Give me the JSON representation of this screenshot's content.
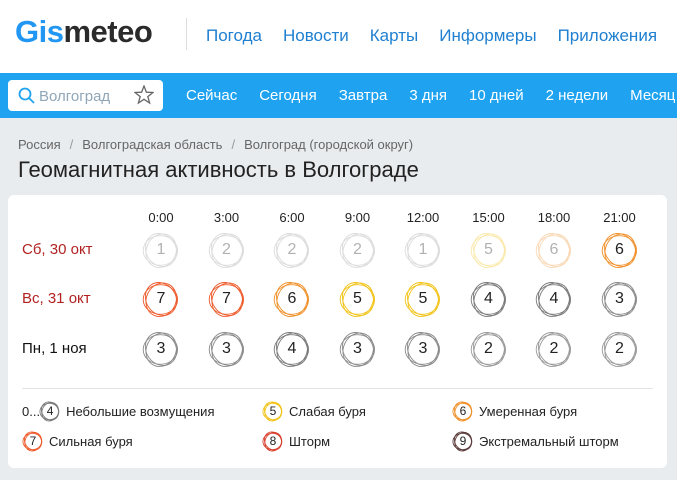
{
  "header": {
    "logo_a": "Gis",
    "logo_b": "meteo",
    "nav": [
      "Погода",
      "Новости",
      "Карты",
      "Информеры",
      "Приложения"
    ]
  },
  "search": {
    "placeholder": "Волгоград"
  },
  "tabs": [
    "Сейчас",
    "Сегодня",
    "Завтра",
    "3 дня",
    "10 дней",
    "2 недели",
    "Месяц"
  ],
  "breadcrumbs": [
    "Россия",
    "Волгоградская область",
    "Волгоград (городской округ)"
  ],
  "title": "Геомагнитная активность в Волгограде",
  "table": {
    "times": [
      "0:00",
      "3:00",
      "6:00",
      "9:00",
      "12:00",
      "15:00",
      "18:00",
      "21:00"
    ],
    "rows": [
      {
        "label": "Сб, 30 окт",
        "values": [
          1,
          2,
          2,
          2,
          1,
          5,
          6,
          6
        ]
      },
      {
        "label": "Вс, 31 окт",
        "values": [
          7,
          7,
          6,
          5,
          5,
          4,
          4,
          3
        ]
      },
      {
        "label": "Пн, 1 ноя",
        "values": [
          3,
          3,
          4,
          3,
          3,
          2,
          2,
          2
        ]
      }
    ]
  },
  "legend": [
    {
      "prefix": "0...",
      "level": 4,
      "label": "Небольшие возмущения"
    },
    {
      "level": 5,
      "label": "Слабая буря"
    },
    {
      "level": 6,
      "label": "Умеренная буря"
    },
    {
      "level": 7,
      "label": "Сильная буря"
    },
    {
      "level": 8,
      "label": "Шторм"
    },
    {
      "level": 9,
      "label": "Экстремальный шторм"
    }
  ]
}
